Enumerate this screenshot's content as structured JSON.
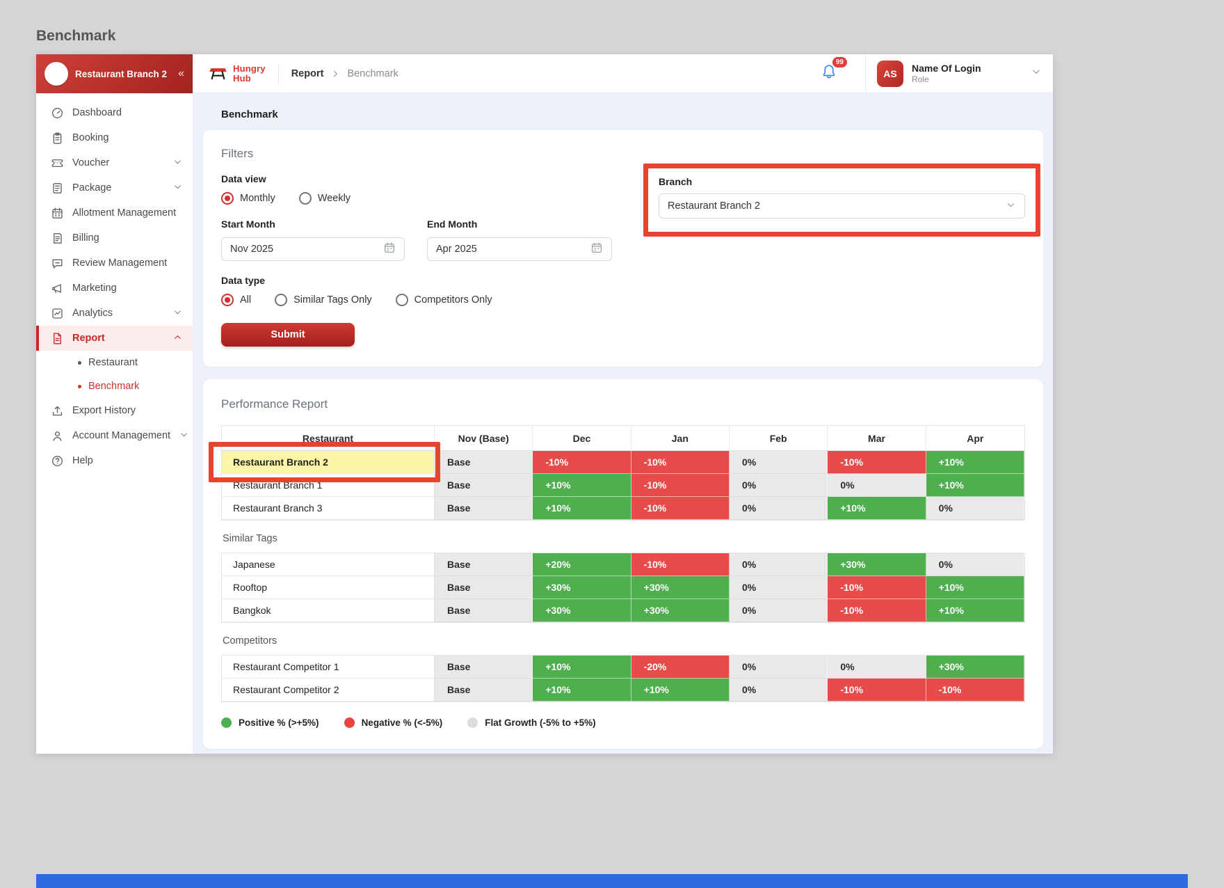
{
  "page": {
    "outer_title": "Benchmark"
  },
  "sidebar": {
    "branch_name": "Restaurant Branch 2",
    "collapse_glyph": "«",
    "items": [
      {
        "label": "Dashboard",
        "icon": "dashboard-icon"
      },
      {
        "label": "Booking",
        "icon": "booking-icon"
      },
      {
        "label": "Voucher",
        "icon": "voucher-icon",
        "chevron": "down"
      },
      {
        "label": "Package",
        "icon": "package-icon",
        "chevron": "down"
      },
      {
        "label": "Allotment Management",
        "icon": "allotment-icon"
      },
      {
        "label": "Billing",
        "icon": "billing-icon"
      },
      {
        "label": "Review Management",
        "icon": "review-icon"
      },
      {
        "label": "Marketing",
        "icon": "marketing-icon"
      },
      {
        "label": "Analytics",
        "icon": "analytics-icon",
        "chevron": "down"
      },
      {
        "label": "Report",
        "icon": "report-icon",
        "chevron": "up",
        "active": true,
        "children": [
          {
            "label": "Restaurant",
            "active": false
          },
          {
            "label": "Benchmark",
            "active": true
          }
        ]
      },
      {
        "label": "Export History",
        "icon": "export-icon"
      },
      {
        "label": "Account Management",
        "icon": "account-icon",
        "chevron": "down"
      },
      {
        "label": "Help",
        "icon": "help-icon"
      }
    ]
  },
  "header": {
    "logo_text_top": "Hungry",
    "logo_text_bottom": "Hub",
    "breadcrumb": [
      "Report",
      "Benchmark"
    ],
    "notification_count": "99",
    "user": {
      "initials": "AS",
      "name": "Name Of Login",
      "role": "Role"
    }
  },
  "content": {
    "title": "Benchmark"
  },
  "filters": {
    "section_title": "Filters",
    "data_view": {
      "label": "Data view",
      "options": [
        {
          "label": "Monthly",
          "selected": true
        },
        {
          "label": "Weekly",
          "selected": false
        }
      ]
    },
    "start_month": {
      "label": "Start Month",
      "value": "Nov 2025"
    },
    "end_month": {
      "label": "End Month",
      "value": "Apr 2025"
    },
    "data_type": {
      "label": "Data type",
      "options": [
        {
          "label": "All",
          "selected": true
        },
        {
          "label": "Similar Tags Only",
          "selected": false
        },
        {
          "label": "Competitors Only",
          "selected": false
        }
      ]
    },
    "submit_label": "Submit",
    "branch": {
      "label": "Branch",
      "value": "Restaurant Branch 2"
    }
  },
  "report": {
    "title": "Performance Report",
    "columns": [
      "Restaurant",
      "Nov (Base)",
      "Dec",
      "Jan",
      "Feb",
      "Mar",
      "Apr"
    ],
    "groups": [
      {
        "label": null,
        "rows": [
          {
            "name": "Restaurant Branch 2",
            "highlight": true,
            "annotated": true,
            "values": [
              "Base",
              "-10%",
              "-10%",
              "0%",
              "-10%",
              "+10%"
            ]
          },
          {
            "name": "Restaurant Branch 1",
            "values": [
              "Base",
              "+10%",
              "-10%",
              "0%",
              "0%",
              "+10%"
            ]
          },
          {
            "name": "Restaurant Branch 3",
            "values": [
              "Base",
              "+10%",
              "-10%",
              "0%",
              "+10%",
              "0%"
            ]
          }
        ]
      },
      {
        "label": "Similar Tags",
        "rows": [
          {
            "name": "Japanese",
            "values": [
              "Base",
              "+20%",
              "-10%",
              "0%",
              "+30%",
              "0%"
            ]
          },
          {
            "name": "Rooftop",
            "values": [
              "Base",
              "+30%",
              "+30%",
              "0%",
              "-10%",
              "+10%"
            ]
          },
          {
            "name": "Bangkok",
            "values": [
              "Base",
              "+30%",
              "+30%",
              "0%",
              "-10%",
              "+10%"
            ]
          }
        ]
      },
      {
        "label": "Competitors",
        "rows": [
          {
            "name": "Restaurant Competitor 1",
            "values": [
              "Base",
              "+10%",
              "-20%",
              "0%",
              "0%",
              "+30%"
            ]
          },
          {
            "name": "Restaurant Competitor 2",
            "values": [
              "Base",
              "+10%",
              "+10%",
              "0%",
              "-10%",
              "-10%"
            ]
          }
        ]
      }
    ],
    "legend": [
      {
        "label": "Positive % (>+5%)",
        "color": "#4caf50"
      },
      {
        "label": "Negative % (<-5%)",
        "color": "#e8433f"
      },
      {
        "label": "Flat Growth (-5% to +5%)",
        "color": "#dcdcdc"
      }
    ]
  },
  "colors": {
    "accent_red": "#c62828",
    "annotation_red": "#e8432d",
    "positive_green": "#4fae4e",
    "negative_red": "#e84c4a",
    "flat_gray": "#e9e9e9",
    "highlight_yellow": "#fbf6a5",
    "bell_blue": "#4285f4"
  }
}
